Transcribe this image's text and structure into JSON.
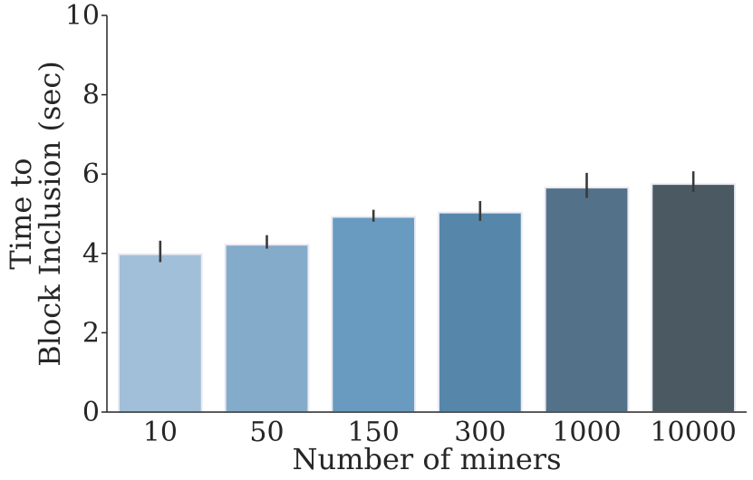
{
  "chart_data": {
    "type": "bar",
    "categories": [
      "10",
      "50",
      "150",
      "300",
      "1000",
      "10000"
    ],
    "values": [
      3.98,
      4.22,
      4.92,
      5.03,
      5.66,
      5.75
    ],
    "error_low": [
      3.78,
      4.12,
      4.8,
      4.82,
      5.4,
      5.55
    ],
    "error_high": [
      4.32,
      4.46,
      5.1,
      5.32,
      6.03,
      6.07
    ],
    "xlabel": "Number of miners",
    "ylabel_lines": [
      "Time to",
      "Block Inclusion (sec)"
    ],
    "ylim": [
      0,
      10
    ],
    "yticks": [
      "0",
      "2",
      "4",
      "6",
      "8",
      "10"
    ],
    "grid": false,
    "bar_colors": [
      "#a1bfd8",
      "#84abc9",
      "#689bbf",
      "#5687ab",
      "#537189",
      "#4a5962"
    ],
    "bar_edge_color": "#eaeaf2",
    "axis_color": "#262626",
    "error_bar_color": "#3a3a3a"
  }
}
